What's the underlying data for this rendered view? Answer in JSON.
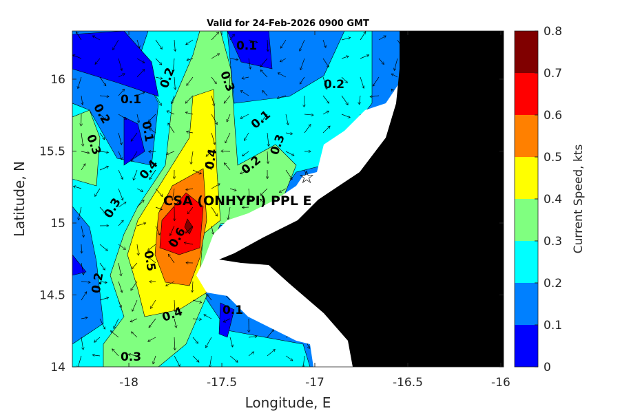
{
  "chart_data": {
    "type": "contour",
    "title": "Valid for 24-Feb-2026 0900 GMT",
    "xlabel": "Longitude, E",
    "ylabel": "Latitude, N",
    "xlim": [
      -18.304,
      -15.985
    ],
    "ylim": [
      14.0,
      16.335
    ],
    "xticks": [
      "-18",
      "-17.5",
      "-17",
      "-16.5",
      "-16"
    ],
    "xtick_values": [
      -18,
      -17.5,
      -17,
      -16.5,
      -16
    ],
    "yticks": [
      "14",
      "14.5",
      "15",
      "15.5",
      "16"
    ],
    "ytick_values": [
      14,
      14.5,
      15,
      15.5,
      16
    ],
    "colorbar": {
      "label": "Current Speed, kts",
      "ticks": [
        "0",
        "0.1",
        "0.2",
        "0.3",
        "0.4",
        "0.5",
        "0.6",
        "0.7",
        "0.8"
      ],
      "levels": [
        0,
        0.1,
        0.2,
        0.3,
        0.4,
        0.5,
        0.6,
        0.7,
        0.8
      ],
      "colors": [
        "#0000ff",
        "#0080ff",
        "#00ffff",
        "#80ff80",
        "#ffff00",
        "#ff8000",
        "#ff0000",
        "#800000"
      ]
    },
    "contour_labels": [
      "0.1",
      "0.2",
      "0.3",
      "0.2",
      "0.1",
      "0.2",
      "0.1",
      "0.3",
      "0.1",
      "0.4",
      "0.2",
      "0.3",
      "0.4",
      "0.6",
      "0.3",
      "0.5",
      "0.2",
      "0.4",
      "0.1",
      "0.3"
    ],
    "site": {
      "label": "CSA (ONHYPI) PPL E",
      "lon": -17.12,
      "lat": 15.23,
      "marker": "star-icon"
    },
    "land_color": "#000000",
    "mask_color": "#ffffff"
  }
}
